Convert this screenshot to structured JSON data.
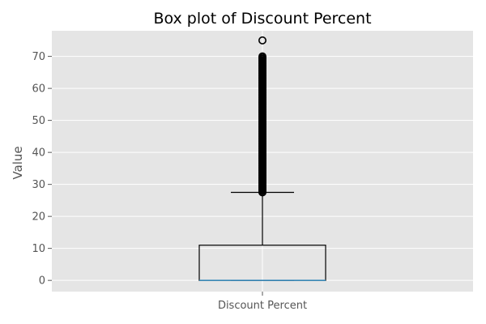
{
  "chart_data": {
    "type": "box",
    "title": "Box plot of Discount Percent",
    "xlabel": "",
    "ylabel": "Value",
    "categories": [
      "Discount Percent"
    ],
    "ylim": [
      -3.5,
      78
    ],
    "yticks": [
      0,
      10,
      20,
      30,
      40,
      50,
      60,
      70
    ],
    "ytick_labels": [
      "0",
      "10",
      "20",
      "30",
      "40",
      "50",
      "60",
      "70"
    ],
    "boxes": [
      {
        "name": "Discount Percent",
        "min": 0,
        "q1": 0,
        "median": 0,
        "q3": 11,
        "max": 27.5,
        "outliers_range": [
          27.5,
          70
        ],
        "outliers_extra": [
          75
        ]
      }
    ],
    "grid": true,
    "style": {
      "background": "#e5e5e5",
      "grid_color": "#ffffff",
      "box_color": "#000000",
      "median_color": "#348abd",
      "outlier_color": "#000000"
    }
  }
}
